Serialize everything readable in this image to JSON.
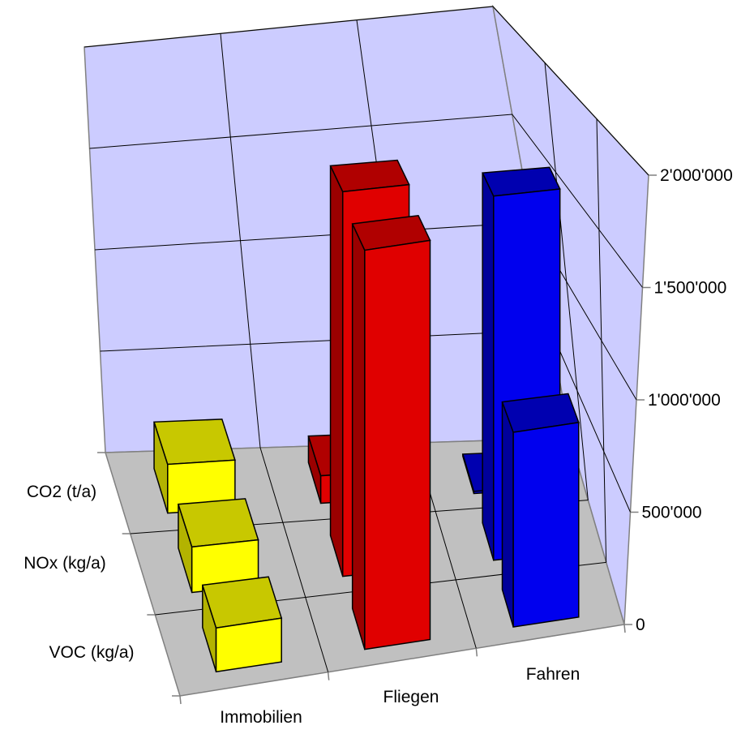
{
  "chart_data": {
    "type": "bar",
    "subtype": "3d-grouped-column",
    "categories": [
      "Immobilien",
      "Fliegen",
      "Fahren"
    ],
    "series": [
      {
        "name": "CO2 (t/a)",
        "values": [
          230000,
          130000,
          10000
        ]
      },
      {
        "name": "NOx  (kg/a)",
        "values": [
          200000,
          1690000,
          1600000
        ]
      },
      {
        "name": "VOC (kg/a)",
        "values": [
          180000,
          1640000,
          800000
        ]
      }
    ],
    "ylim": [
      0,
      2000000
    ],
    "yticks": [
      "0",
      "500'000",
      "1'000'000",
      "1'500'000",
      "2'000'000"
    ],
    "grid": true,
    "legend": "none",
    "colors": {
      "wall": "#ccccff",
      "floor": "#c0c0c0",
      "Immobilien": {
        "front": "#ffff00",
        "top": "#c8c800",
        "side": "#b3b300"
      },
      "Fliegen": {
        "front": "#e00000",
        "top": "#b00000",
        "side": "#9a0000"
      },
      "Fahren": {
        "front": "#0000ee",
        "top": "#0000b0",
        "side": "#00009a"
      }
    }
  }
}
